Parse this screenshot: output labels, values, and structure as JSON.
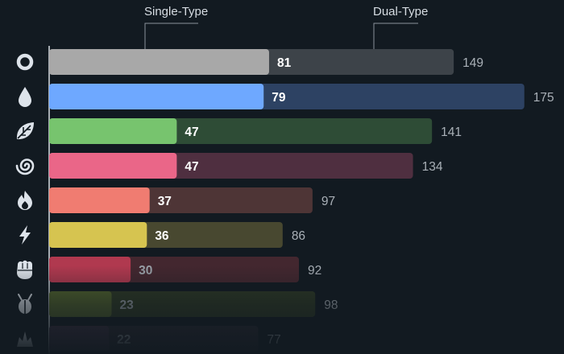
{
  "legend": {
    "single_label": "Single-Type",
    "dual_label": "Dual-Type"
  },
  "chart_data": {
    "type": "bar",
    "orientation": "horizontal",
    "stacked": true,
    "categories": [
      "Normal",
      "Water",
      "Grass",
      "Psychic",
      "Fire",
      "Electric",
      "Fighting",
      "Bug",
      "Poison"
    ],
    "series": [
      {
        "name": "Single-Type",
        "values": [
          81,
          79,
          47,
          47,
          37,
          36,
          30,
          23,
          22
        ]
      },
      {
        "name": "Dual-Type",
        "values": [
          149,
          175,
          141,
          134,
          97,
          86,
          92,
          98,
          77
        ]
      }
    ],
    "single_colors": [
      "#a8a8a8",
      "#6ea8ff",
      "#77c46e",
      "#ea6688",
      "#f07c71",
      "#d6c450",
      "#b0394f",
      "#52642c",
      "#3e3044"
    ],
    "dual_colors": [
      "#3d4349",
      "#2d4263",
      "#2e4c36",
      "#4f2f40",
      "#4e3536",
      "#484830",
      "#43272f",
      "#2e3a24",
      "#2b2832"
    ],
    "icons": [
      "ring-icon",
      "water-drop-icon",
      "leaf-icon",
      "spiral-icon",
      "flame-icon",
      "lightning-icon",
      "fist-icon",
      "bug-icon",
      "poison-icon"
    ],
    "grid": false,
    "legend_position": "top"
  }
}
